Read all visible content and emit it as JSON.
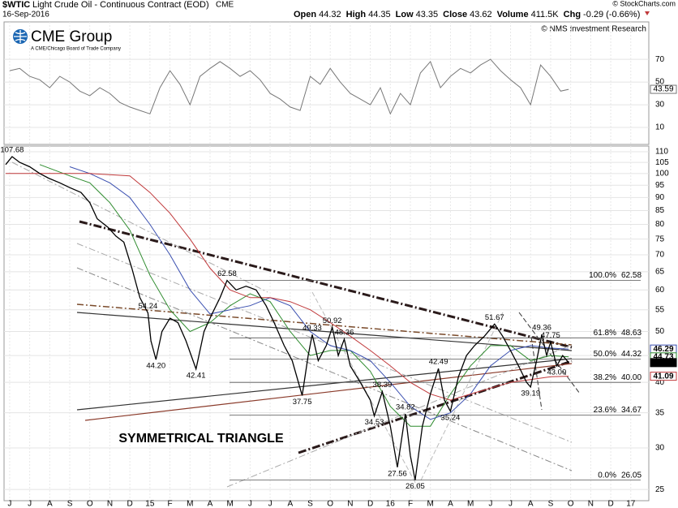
{
  "chart_data": {
    "type": "line",
    "title": "$WTIC",
    "subtitle": "Light Crude Oil - Continuous Contract (EOD)",
    "exchange": "CME",
    "date": "16-Sep-2016",
    "quote": [
      {
        "label": "Open",
        "value": "44.32"
      },
      {
        "label": "High",
        "value": "44.35"
      },
      {
        "label": "Low",
        "value": "43.35"
      },
      {
        "label": "Close",
        "value": "43.62"
      },
      {
        "label": "Volume",
        "value": "411.5K"
      },
      {
        "label": "Chg",
        "value": "-0.29 (-0.66%)"
      }
    ],
    "credit": "© StockCharts.com",
    "copyright": "© NMS Investment Research",
    "logo": "CME Group",
    "logo_tagline": "A CME/Chicago Board of Trade Company",
    "annotation": "SYMMETRICAL TRIANGLE",
    "log_scale": true,
    "grid": true,
    "xlim": [
      -0.28,
      31.9
    ],
    "xticks": [
      {
        "value": 0,
        "label": "J"
      },
      {
        "value": 1,
        "label": "J"
      },
      {
        "value": 2,
        "label": "A"
      },
      {
        "value": 3,
        "label": "S"
      },
      {
        "value": 4,
        "label": "O"
      },
      {
        "value": 5,
        "label": "N"
      },
      {
        "value": 6,
        "label": "D"
      },
      {
        "value": 7,
        "label": "15"
      },
      {
        "value": 8,
        "label": "F"
      },
      {
        "value": 9,
        "label": "M"
      },
      {
        "value": 10,
        "label": "A"
      },
      {
        "value": 11,
        "label": "M"
      },
      {
        "value": 12,
        "label": "J"
      },
      {
        "value": 13,
        "label": "J"
      },
      {
        "value": 14,
        "label": "A"
      },
      {
        "value": 15,
        "label": "S"
      },
      {
        "value": 16,
        "label": "O"
      },
      {
        "value": 17,
        "label": "N"
      },
      {
        "value": 18,
        "label": "D"
      },
      {
        "value": 19,
        "label": "16"
      },
      {
        "value": 20,
        "label": "F"
      },
      {
        "value": 21,
        "label": "M"
      },
      {
        "value": 22,
        "label": "A"
      },
      {
        "value": 23,
        "label": "M"
      },
      {
        "value": 24,
        "label": "J"
      },
      {
        "value": 25,
        "label": "J"
      },
      {
        "value": 26,
        "label": "A"
      },
      {
        "value": 27,
        "label": "S"
      },
      {
        "value": 28,
        "label": "O"
      },
      {
        "value": 29,
        "label": "N"
      },
      {
        "value": 30,
        "label": "D"
      },
      {
        "value": 31,
        "label": "17"
      }
    ],
    "ylim": [
      23.8,
      112.8
    ],
    "yticks": [
      25,
      30,
      35,
      40,
      45,
      50,
      55,
      60,
      65,
      70,
      75,
      80,
      85,
      90,
      95,
      100,
      105,
      110
    ],
    "price": {
      "color": "#000000",
      "x": [
        -0.2,
        0.12,
        0.5,
        1,
        1.5,
        1.94,
        2.5,
        3,
        3.56,
        4,
        4.37,
        4.9,
        5.3,
        5.7,
        6.1,
        6.5,
        6.9,
        7.05,
        7.3,
        7.6,
        8.0,
        8.4,
        8.8,
        9.3,
        9.7,
        10.1,
        10.5,
        10.85,
        11.3,
        11.8,
        12.3,
        12.8,
        13.2,
        13.7,
        14.1,
        14.6,
        14.9,
        15.1,
        15.4,
        15.8,
        16.1,
        16.4,
        16.7,
        17.0,
        17.5,
        18.0,
        18.2,
        18.6,
        19.0,
        19.35,
        19.75,
        20.0,
        20.24,
        20.6,
        21.0,
        21.4,
        21.7,
        22.0,
        22.4,
        22.8,
        23.2,
        23.7,
        24.2,
        24.6,
        25.0,
        25.4,
        25.8,
        26.0,
        26.3,
        26.56,
        26.8,
        27.0,
        27.3,
        27.6,
        27.9
      ],
      "values": [
        104,
        107.68,
        105,
        103,
        100,
        98,
        96,
        94,
        92,
        88,
        82,
        79,
        76,
        74,
        66,
        58,
        54.24,
        48,
        44.2,
        50,
        53,
        52,
        48,
        42.41,
        50,
        54,
        58,
        62.58,
        60,
        61,
        60,
        56,
        52,
        47,
        44,
        37.75,
        45,
        49.33,
        44,
        47,
        50.92,
        45,
        48.36,
        43,
        40,
        37,
        34.53,
        38.39,
        33,
        27.56,
        34.82,
        29,
        26.05,
        33,
        38,
        42.49,
        37,
        35.24,
        41,
        45,
        47,
        49,
        51.67,
        49,
        46,
        43,
        40,
        39.19,
        44,
        49.36,
        45,
        47.75,
        43,
        45,
        43.62
      ],
      "value_labels": [
        null,
        "107.68",
        null,
        null,
        null,
        null,
        null,
        null,
        null,
        null,
        null,
        null,
        null,
        null,
        null,
        null,
        "54.24",
        null,
        "44.20",
        null,
        null,
        null,
        null,
        "42.41",
        null,
        null,
        null,
        "62.58",
        null,
        null,
        null,
        null,
        null,
        null,
        null,
        "37.75",
        null,
        "49.33",
        null,
        null,
        "50.92",
        null,
        "48.36",
        null,
        null,
        null,
        "34.53",
        "38.39",
        null,
        "27.56",
        "34.82",
        null,
        "26.05",
        null,
        null,
        "42.49",
        null,
        "35.24",
        null,
        null,
        null,
        null,
        "51.67",
        null,
        null,
        null,
        null,
        "39.19",
        null,
        "49.36",
        null,
        "47.75",
        "43.00",
        null,
        null
      ]
    },
    "moving_averages": [
      {
        "color": "#2e8b2e",
        "x": [
          1.5,
          3,
          4,
          5,
          6,
          7,
          8,
          9,
          10,
          11,
          12,
          13,
          14,
          15,
          16,
          17,
          18,
          19,
          20,
          21,
          22,
          23,
          24,
          25,
          26,
          27,
          27.9
        ],
        "values": [
          104,
          99,
          96,
          88,
          78,
          64,
          55,
          50,
          52,
          56,
          59,
          57,
          50,
          45,
          46,
          46,
          42,
          36,
          33,
          33,
          38,
          43,
          47,
          47,
          44,
          45,
          44.73
        ]
      },
      {
        "color": "#3a4fb0",
        "x": [
          3,
          4,
          5,
          6,
          7,
          8,
          9,
          10,
          11,
          12,
          13,
          14,
          15,
          16,
          17,
          18,
          19,
          20,
          21,
          22,
          23,
          24,
          25,
          26,
          27,
          27.9
        ],
        "values": [
          103,
          100,
          96,
          90,
          80,
          70,
          60,
          54,
          55,
          56,
          58,
          56,
          50,
          47,
          46,
          44,
          40,
          36,
          34,
          35,
          38,
          43,
          46,
          47,
          46.5,
          46.29
        ]
      },
      {
        "color": "#c0393b",
        "x": [
          -0.2,
          2,
          4,
          6,
          7,
          8,
          9,
          10,
          11,
          12,
          13,
          14,
          15,
          16,
          17,
          18,
          19,
          20,
          21,
          22,
          23,
          24,
          25,
          26,
          27,
          27.9
        ],
        "values": [
          100,
          100,
          100,
          99,
          92,
          84,
          75,
          66,
          60,
          58,
          58,
          57,
          55,
          52,
          49,
          46,
          43,
          40,
          38,
          37,
          38,
          39,
          40,
          40.5,
          41,
          41.09
        ]
      }
    ],
    "last_values": [
      {
        "value": 46.29,
        "label": "46.29",
        "color": "#3a4fb0"
      },
      {
        "value": 44.73,
        "label": "44.73",
        "color": "#2e8b2e"
      },
      {
        "value": 43.62,
        "label": "43.62",
        "color": "#000000"
      },
      {
        "value": 41.09,
        "label": "41.09",
        "color": "#c0393b"
      }
    ],
    "fibonacci": [
      {
        "level": "100.0%",
        "value": 62.58,
        "label": "62.58"
      },
      {
        "level": "61.8%",
        "value": 48.63,
        "label": "48.63"
      },
      {
        "level": "50.0%",
        "value": 44.32,
        "label": "44.32"
      },
      {
        "level": "38.2%",
        "value": 40,
        "label": "40.00"
      },
      {
        "level": "23.6%",
        "value": 34.67,
        "label": "34.67"
      },
      {
        "level": "0.0%",
        "value": 26.05,
        "label": "26.05"
      }
    ],
    "rsi": {
      "color": "#777777",
      "ylim": [
        -5,
        103
      ],
      "yticks": [
        10,
        30,
        50,
        70
      ],
      "x": [
        0,
        0.5,
        1,
        1.5,
        2,
        2.5,
        3,
        3.5,
        4,
        4.5,
        5,
        5.5,
        6,
        6.5,
        7,
        7.5,
        8,
        8.5,
        9,
        9.5,
        10,
        10.5,
        11,
        11.5,
        12,
        12.5,
        13,
        13.5,
        14,
        14.5,
        15,
        15.5,
        16,
        16.5,
        17,
        17.5,
        18,
        18.5,
        19,
        19.5,
        20,
        20.5,
        21,
        21.5,
        22,
        22.5,
        23,
        23.5,
        24,
        24.5,
        25,
        25.5,
        26,
        26.5,
        27,
        27.5,
        27.9
      ],
      "values": [
        60,
        62,
        55,
        52,
        45,
        55,
        50,
        42,
        38,
        45,
        40,
        32,
        28,
        25,
        22,
        45,
        60,
        48,
        30,
        55,
        62,
        68,
        62,
        55,
        60,
        52,
        40,
        35,
        28,
        25,
        55,
        48,
        62,
        50,
        40,
        35,
        30,
        45,
        22,
        40,
        30,
        58,
        68,
        45,
        55,
        62,
        58,
        65,
        70,
        60,
        52,
        45,
        30,
        65,
        55,
        42,
        43.59
      ],
      "last_value": {
        "value": 43.59,
        "label": "43.59"
      }
    }
  }
}
